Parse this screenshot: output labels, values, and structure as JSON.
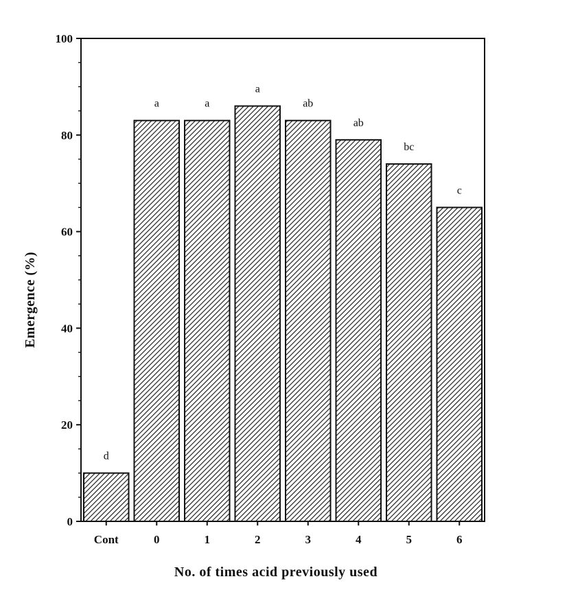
{
  "chart_data": {
    "type": "bar",
    "categories": [
      "Cont",
      "0",
      "1",
      "2",
      "3",
      "4",
      "5",
      "6"
    ],
    "values": [
      10,
      83,
      83,
      86,
      83,
      79,
      74,
      65
    ],
    "significance_letters": [
      "d",
      "a",
      "a",
      "a",
      "ab",
      "ab",
      "bc",
      "c"
    ],
    "xlabel": "No. of times acid previously used",
    "ylabel": "Emergence (%)",
    "ylim": [
      0,
      100
    ],
    "yticks": [
      "0",
      "20",
      "40",
      "60",
      "80",
      "100"
    ],
    "bar_fill": "diagonal-hatch",
    "grid": false,
    "colors": {
      "bar_stroke": "#111111",
      "hatch": "#222222",
      "background": "#ffffff"
    }
  }
}
